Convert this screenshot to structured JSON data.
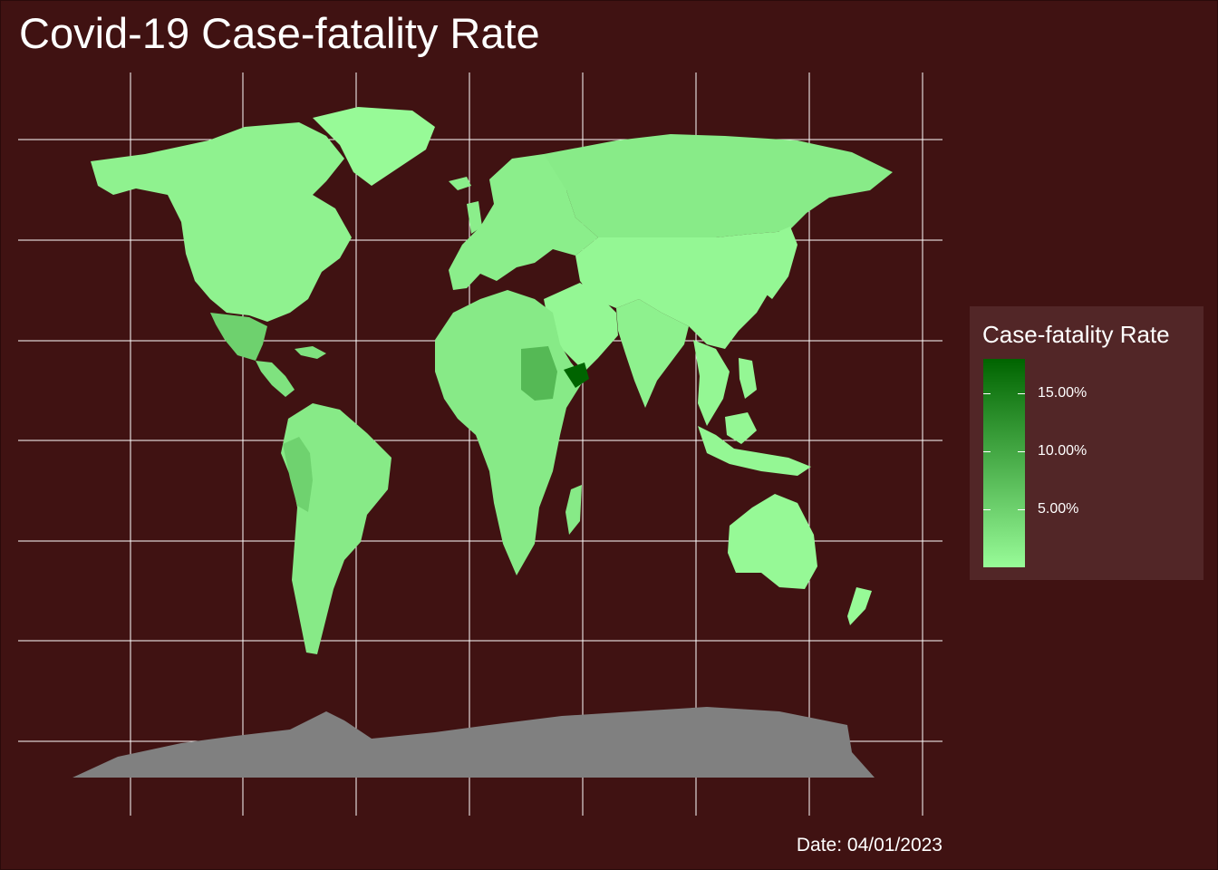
{
  "title": "Covid-19 Case-fatality Rate",
  "caption": "Date: 04/01/2023",
  "colors": {
    "background": "#401212",
    "grid": "#ffffff",
    "legend_background": "#522627",
    "low": "#98fb98",
    "high": "#006400",
    "no_data": "#808080"
  },
  "legend": {
    "title": "Case-fatality Rate",
    "ticks": [
      {
        "label": "15.00%",
        "value": 15
      },
      {
        "label": "10.00%",
        "value": 10
      },
      {
        "label": "5.00%",
        "value": 5
      }
    ],
    "range": [
      0,
      18
    ]
  },
  "regions": [
    {
      "name": "north-america",
      "cfr": 1.1
    },
    {
      "name": "greenland",
      "cfr": 0.1
    },
    {
      "name": "mexico",
      "cfr": 5.0
    },
    {
      "name": "central-america",
      "cfr": 3.0
    },
    {
      "name": "south-america",
      "cfr": 2.0
    },
    {
      "name": "peru",
      "cfr": 4.9
    },
    {
      "name": "europe",
      "cfr": 1.5
    },
    {
      "name": "russia",
      "cfr": 1.9
    },
    {
      "name": "asia",
      "cfr": 0.5
    },
    {
      "name": "india",
      "cfr": 1.2
    },
    {
      "name": "africa",
      "cfr": 2.0
    },
    {
      "name": "sudan",
      "cfr": 7.9
    },
    {
      "name": "yemen",
      "cfr": 18.1
    },
    {
      "name": "australia",
      "cfr": 0.2
    },
    {
      "name": "new-zealand",
      "cfr": 0.1
    },
    {
      "name": "antarctica",
      "cfr": null
    }
  ]
}
